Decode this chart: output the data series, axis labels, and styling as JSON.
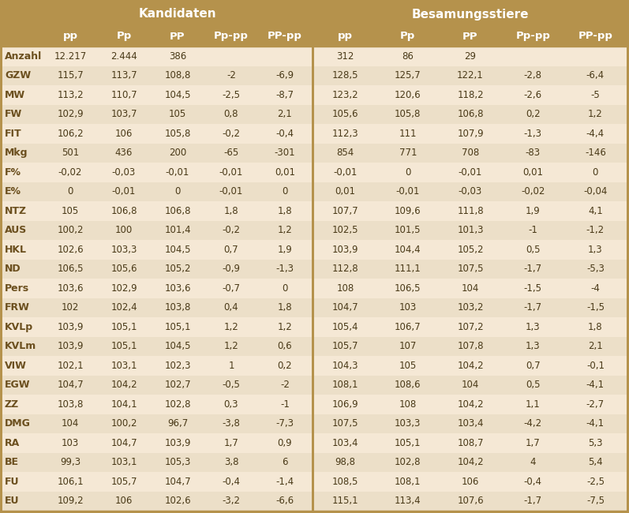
{
  "header_sub": [
    "pp",
    "Pp",
    "PP",
    "Pp-pp",
    "PP-pp",
    "pp",
    "Pp",
    "PP",
    "Pp-pp",
    "PP-pp"
  ],
  "row_labels": [
    "Anzahl",
    "GZW",
    "MW",
    "FW",
    "FIT",
    "Mkg",
    "F%",
    "E%",
    "NTZ",
    "AUS",
    "HKL",
    "ND",
    "Pers",
    "FRW",
    "KVLp",
    "KVLm",
    "VIW",
    "EGW",
    "ZZ",
    "DMG",
    "RA",
    "BE",
    "FU",
    "EU"
  ],
  "data": [
    [
      "12.217",
      "2.444",
      "386",
      "",
      ""
    ],
    [
      "115,7",
      "113,7",
      "108,8",
      "-2",
      "-6,9"
    ],
    [
      "113,2",
      "110,7",
      "104,5",
      "-2,5",
      "-8,7"
    ],
    [
      "102,9",
      "103,7",
      "105",
      "0,8",
      "2,1"
    ],
    [
      "106,2",
      "106",
      "105,8",
      "-0,2",
      "-0,4"
    ],
    [
      "501",
      "436",
      "200",
      "-65",
      "-301"
    ],
    [
      "-0,02",
      "-0,03",
      "-0,01",
      "-0,01",
      "0,01"
    ],
    [
      "0",
      "-0,01",
      "0",
      "-0,01",
      "0"
    ],
    [
      "105",
      "106,8",
      "106,8",
      "1,8",
      "1,8"
    ],
    [
      "100,2",
      "100",
      "101,4",
      "-0,2",
      "1,2"
    ],
    [
      "102,6",
      "103,3",
      "104,5",
      "0,7",
      "1,9"
    ],
    [
      "106,5",
      "105,6",
      "105,2",
      "-0,9",
      "-1,3"
    ],
    [
      "103,6",
      "102,9",
      "103,6",
      "-0,7",
      "0"
    ],
    [
      "102",
      "102,4",
      "103,8",
      "0,4",
      "1,8"
    ],
    [
      "103,9",
      "105,1",
      "105,1",
      "1,2",
      "1,2"
    ],
    [
      "103,9",
      "105,1",
      "104,5",
      "1,2",
      "0,6"
    ],
    [
      "102,1",
      "103,1",
      "102,3",
      "1",
      "0,2"
    ],
    [
      "104,7",
      "104,2",
      "102,7",
      "-0,5",
      "-2"
    ],
    [
      "103,8",
      "104,1",
      "102,8",
      "0,3",
      "-1"
    ],
    [
      "104",
      "100,2",
      "96,7",
      "-3,8",
      "-7,3"
    ],
    [
      "103",
      "104,7",
      "103,9",
      "1,7",
      "0,9"
    ],
    [
      "99,3",
      "103,1",
      "105,3",
      "3,8",
      "6"
    ],
    [
      "106,1",
      "105,7",
      "104,7",
      "-0,4",
      "-1,4"
    ],
    [
      "109,2",
      "106",
      "102,6",
      "-3,2",
      "-6,6"
    ]
  ],
  "data_right": [
    [
      "312",
      "86",
      "29",
      "",
      ""
    ],
    [
      "128,5",
      "125,7",
      "122,1",
      "-2,8",
      "-6,4"
    ],
    [
      "123,2",
      "120,6",
      "118,2",
      "-2,6",
      "-5"
    ],
    [
      "105,6",
      "105,8",
      "106,8",
      "0,2",
      "1,2"
    ],
    [
      "112,3",
      "111",
      "107,9",
      "-1,3",
      "-4,4"
    ],
    [
      "854",
      "771",
      "708",
      "-83",
      "-146"
    ],
    [
      "-0,01",
      "0",
      "-0,01",
      "0,01",
      "0"
    ],
    [
      "0,01",
      "-0,01",
      "-0,03",
      "-0,02",
      "-0,04"
    ],
    [
      "107,7",
      "109,6",
      "111,8",
      "1,9",
      "4,1"
    ],
    [
      "102,5",
      "101,5",
      "101,3",
      "-1",
      "-1,2"
    ],
    [
      "103,9",
      "104,4",
      "105,2",
      "0,5",
      "1,3"
    ],
    [
      "112,8",
      "111,1",
      "107,5",
      "-1,7",
      "-5,3"
    ],
    [
      "108",
      "106,5",
      "104",
      "-1,5",
      "-4"
    ],
    [
      "104,7",
      "103",
      "103,2",
      "-1,7",
      "-1,5"
    ],
    [
      "105,4",
      "106,7",
      "107,2",
      "1,3",
      "1,8"
    ],
    [
      "105,7",
      "107",
      "107,8",
      "1,3",
      "2,1"
    ],
    [
      "104,3",
      "105",
      "104,2",
      "0,7",
      "-0,1"
    ],
    [
      "108,1",
      "108,6",
      "104",
      "0,5",
      "-4,1"
    ],
    [
      "106,9",
      "108",
      "104,2",
      "1,1",
      "-2,7"
    ],
    [
      "107,5",
      "103,3",
      "103,4",
      "-4,2",
      "-4,1"
    ],
    [
      "103,4",
      "105,1",
      "108,7",
      "1,7",
      "5,3"
    ],
    [
      "98,8",
      "102,8",
      "104,2",
      "4",
      "5,4"
    ],
    [
      "108,5",
      "108,1",
      "106",
      "-0,4",
      "-2,5"
    ],
    [
      "115,1",
      "113,4",
      "107,6",
      "-1,7",
      "-7,5"
    ]
  ],
  "color_header": "#b5924c",
  "color_row_odd": "#f5e8d5",
  "color_row_even": "#ecdfc8",
  "color_label": "#6b4f1e",
  "color_text_header": "#ffffff",
  "color_text_data": "#4a3a18",
  "color_divider": "#b5924c",
  "header_fontsize": 11,
  "subheader_fontsize": 9.5,
  "data_fontsize": 8.5,
  "label_fontsize": 9.0
}
